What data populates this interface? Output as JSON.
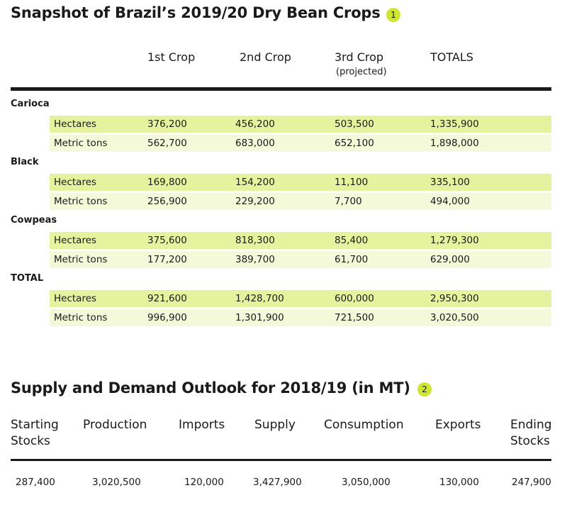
{
  "crops": {
    "title": "Snapshot of Brazil’s 2019/20 Dry Bean Crops",
    "badge": "1",
    "columns": [
      "1st Crop",
      "2nd Crop",
      "3rd Crop",
      "TOTALS"
    ],
    "column_note": "(projected)",
    "groups": [
      {
        "name": "Carioca",
        "rows": [
          [
            "Hectares",
            "376,200",
            "456,200",
            "503,500",
            "1,335,900"
          ],
          [
            "Metric tons",
            "562,700",
            "683,000",
            "652,100",
            "1,898,000"
          ]
        ]
      },
      {
        "name": "Black",
        "rows": [
          [
            "Hectares",
            "169,800",
            "154,200",
            "11,100",
            "335,100"
          ],
          [
            "Metric tons",
            "256,900",
            "229,200",
            "7,700",
            "494,000"
          ]
        ]
      },
      {
        "name": "Cowpeas",
        "rows": [
          [
            "Hectares",
            "375,600",
            "818,300",
            "85,400",
            "1,279,300"
          ],
          [
            "Metric tons",
            "177,200",
            "389,700",
            "61,700",
            "629,000"
          ]
        ]
      },
      {
        "name": "TOTAL",
        "rows": [
          [
            "Hectares",
            "921,600",
            "1,428,700",
            "600,000",
            "2,950,300"
          ],
          [
            "Metric tons",
            "996,900",
            "1,301,900",
            "721,500",
            "3,020,500"
          ]
        ]
      }
    ]
  },
  "outlook": {
    "title": "Supply and Demand Outlook for 2018/19 (in MT)",
    "badge": "2",
    "columns": [
      "Starting Stocks",
      "Production",
      "Imports",
      "Supply",
      "Consumption",
      "Exports",
      "Ending Stocks"
    ],
    "values": [
      "287,400",
      "3,020,500",
      "120,000",
      "3,427,900",
      "3,050,000",
      "130,000",
      "247,900"
    ]
  }
}
